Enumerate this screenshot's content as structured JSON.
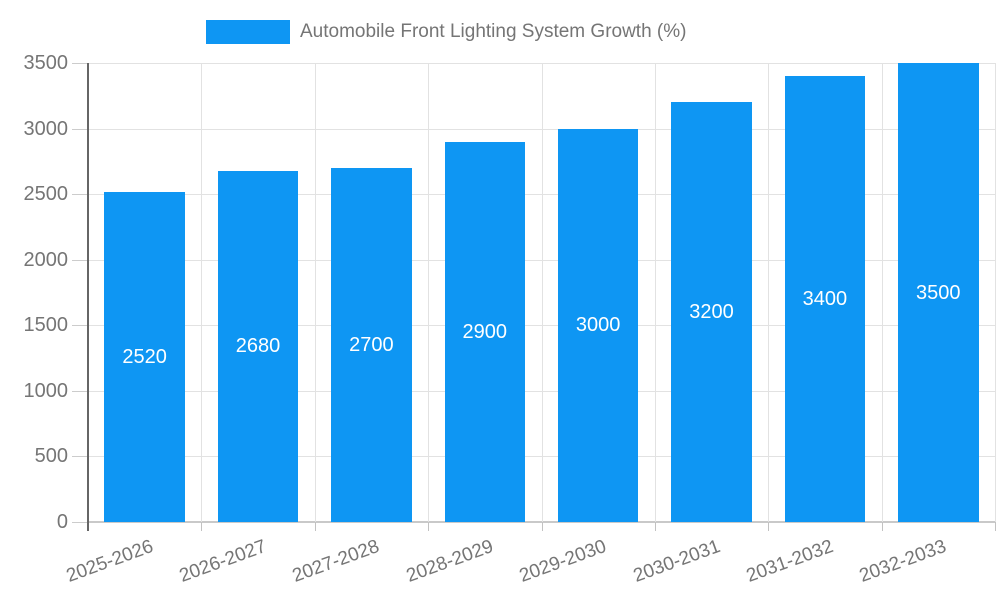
{
  "legend": {
    "label": "Automobile Front Lighting System Growth (%)"
  },
  "chart_data": {
    "type": "bar",
    "title": "Automobile Front Lighting System Growth (%)",
    "categories": [
      "2025-2026",
      "2026-2027",
      "2027-2028",
      "2028-2029",
      "2029-2030",
      "2030-2031",
      "2031-2032",
      "2032-2033"
    ],
    "values": [
      2520,
      2680,
      2700,
      2900,
      3000,
      3200,
      3400,
      3500
    ],
    "bar_value_labels": [
      "2520",
      "2680",
      "2700",
      "2900",
      "3000",
      "3200",
      "3400",
      "3500"
    ],
    "xlabel": "",
    "ylabel": "",
    "ylim": [
      0,
      3500
    ],
    "yticks": [
      "0",
      "500",
      "1000",
      "1500",
      "2000",
      "2500",
      "3000",
      "3500"
    ],
    "grid": true,
    "legend_position": "top",
    "x_label_rotation_deg": -20,
    "bar_color": "#0E96F3",
    "value_label_color": "#FFFFFF",
    "axis_text_color": "#757575",
    "gridline_color": "#E2E2E2"
  }
}
